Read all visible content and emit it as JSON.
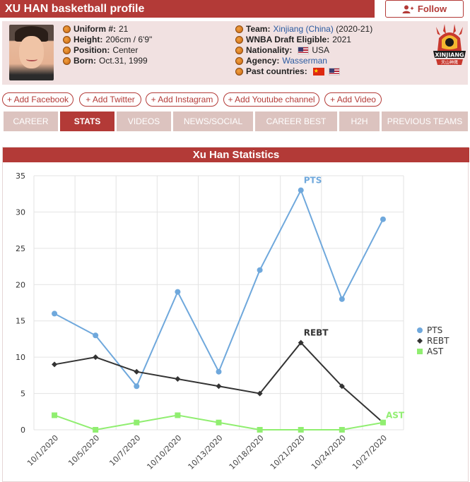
{
  "header": {
    "title": "XU HAN basketball profile",
    "follow_label": "Follow"
  },
  "profile": {
    "left": [
      {
        "label": "Uniform #:",
        "value": "21"
      },
      {
        "label": "Height:",
        "value": "206cm / 6'9\""
      },
      {
        "label": "Position:",
        "value": "Center"
      },
      {
        "label": "Born:",
        "value": "Oct.31, 1999"
      }
    ],
    "team_label": "Team:",
    "team_value": "Xinjiang (China)",
    "team_years": "(2020-21)",
    "draft_label": "WNBA Draft Eligible:",
    "draft_value": "2021",
    "nationality_label": "Nationality:",
    "nationality_value": "USA",
    "agency_label": "Agency:",
    "agency_value": "Wasserman",
    "past_label": "Past countries:",
    "logo_text": "XINJIANG",
    "logo_subtext": "天山神鹰"
  },
  "social": [
    "+ Add Facebook",
    "+ Add Twitter",
    "+ Add Instagram",
    "+ Add Youtube channel",
    "+ Add Video"
  ],
  "tabs": [
    "CAREER",
    "STATS",
    "VIDEOS",
    "NEWS/SOCIAL",
    "CAREER BEST",
    "H2H",
    "PREVIOUS TEAMS"
  ],
  "active_tab": "STATS",
  "colors": {
    "accent": "#b33a37",
    "tab_bg": "#dcc3bf",
    "pts": "#6fa8dc",
    "rebt": "#333333",
    "ast": "#90ee70"
  },
  "chart_data": {
    "type": "line",
    "title": "Xu Han Statistics",
    "categories": [
      "10/1/2020",
      "10/5/2020",
      "10/7/2020",
      "10/10/2020",
      "10/13/2020",
      "10/18/2020",
      "10/21/2020",
      "10/24/2020",
      "10/27/2020"
    ],
    "ylim": [
      0,
      35
    ],
    "yticks": [
      0,
      5,
      10,
      15,
      20,
      25,
      30,
      35
    ],
    "grid": true,
    "legend_position": "right",
    "series": [
      {
        "name": "PTS",
        "values": [
          16,
          13,
          6,
          19,
          8,
          22,
          33,
          18,
          29
        ],
        "marker": "circle",
        "color": "#6fa8dc"
      },
      {
        "name": "REBT",
        "values": [
          9,
          10,
          8,
          7,
          6,
          5,
          12,
          6,
          1
        ],
        "marker": "diamond",
        "color": "#333333"
      },
      {
        "name": "AST",
        "values": [
          2,
          0,
          1,
          2,
          1,
          0,
          0,
          0,
          1
        ],
        "marker": "square",
        "color": "#90ee70"
      }
    ]
  }
}
